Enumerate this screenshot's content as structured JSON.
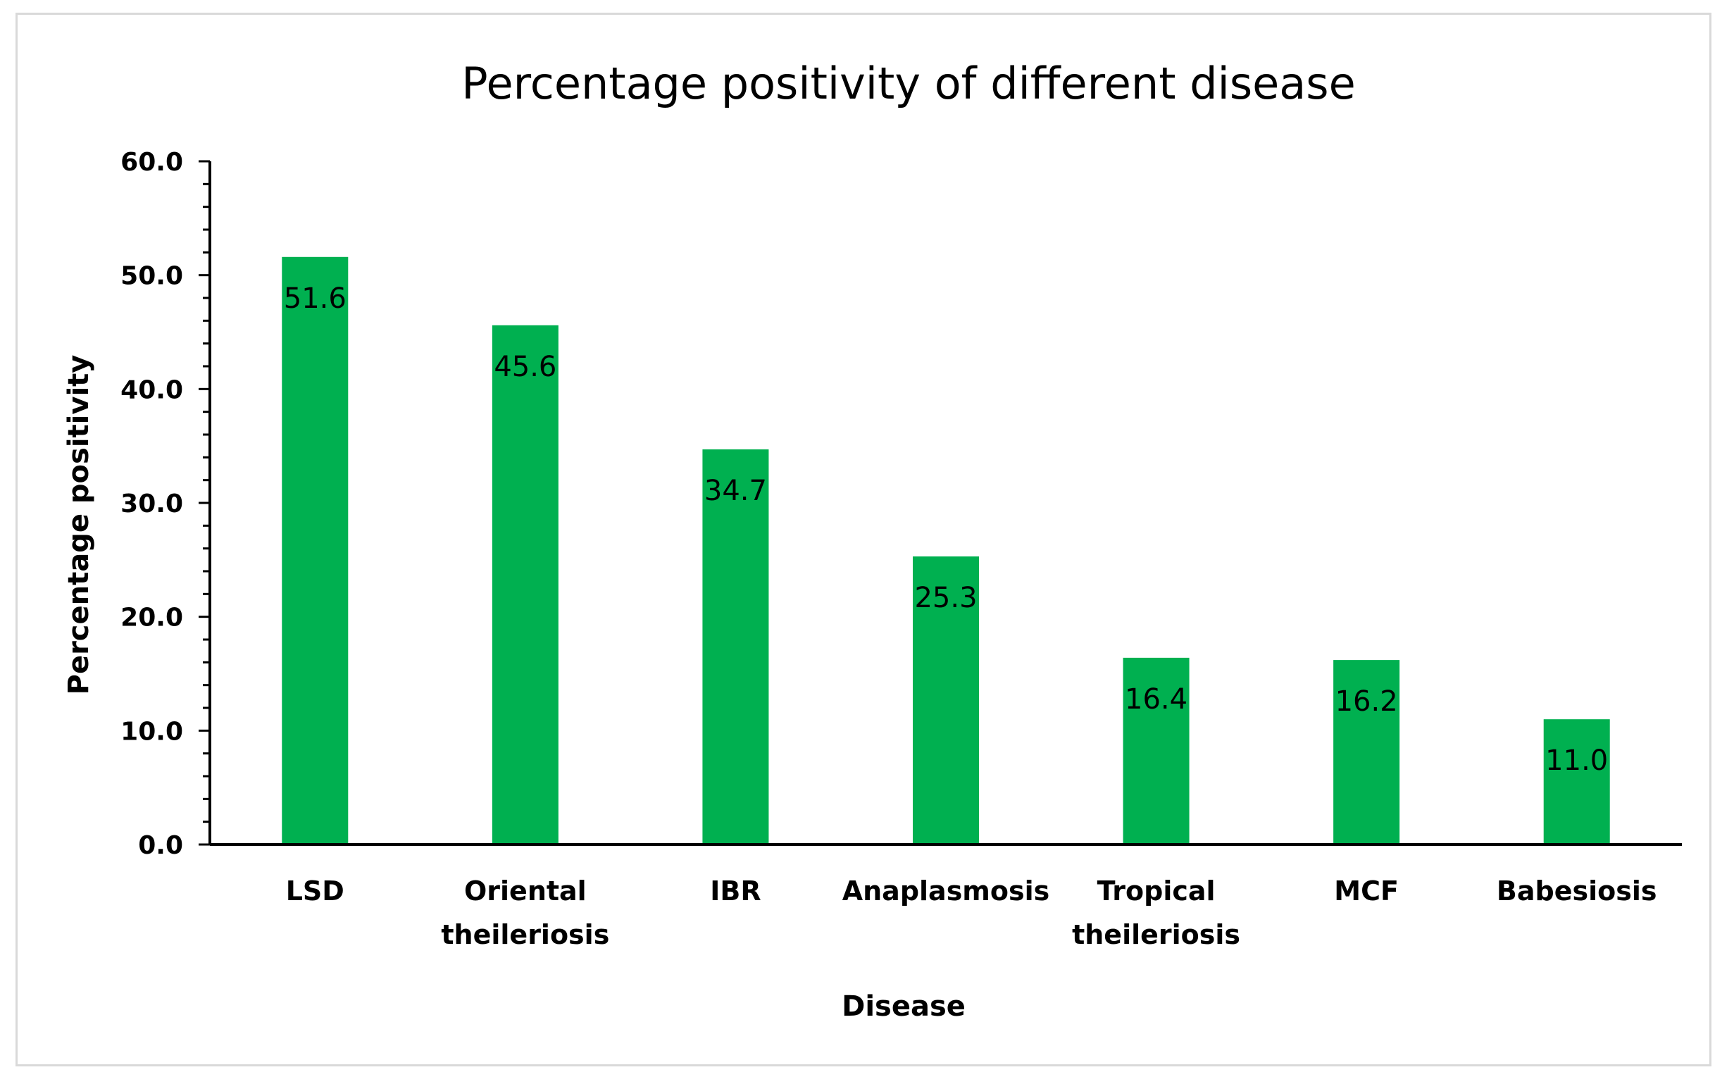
{
  "chart_data": {
    "type": "bar",
    "title": "Percentage positivity of different disease",
    "xlabel": "Disease",
    "ylabel": "Percentage positivity",
    "categories": [
      [
        "LSD"
      ],
      [
        "Oriental",
        "theileriosis"
      ],
      [
        "IBR"
      ],
      [
        "Anaplasmosis"
      ],
      [
        "Tropical",
        "theileriosis"
      ],
      [
        "MCF"
      ],
      [
        "Babesiosis"
      ]
    ],
    "values": [
      51.6,
      45.6,
      34.7,
      25.3,
      16.4,
      16.2,
      11.0
    ],
    "data_labels": [
      "51.6",
      "45.6",
      "34.7",
      "25.3",
      "16.4",
      "16.2",
      "11.0"
    ],
    "ylim": [
      0,
      60
    ],
    "yticks": [
      "0.0",
      "10.0",
      "20.0",
      "30.0",
      "40.0",
      "50.0",
      "60.0"
    ],
    "grid": false,
    "legend": "none",
    "bar_color": "#00b050"
  }
}
